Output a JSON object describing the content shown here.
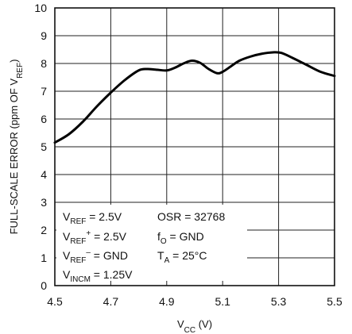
{
  "chart_data": {
    "type": "line",
    "xlabel": "V<sub>CC</sub> (V)",
    "xlabel_parts": {
      "main": "V",
      "sub": "CC",
      "suffix": " (V)"
    },
    "ylabel_parts": {
      "prefix": "FULL-SCALE ERROR (ppm OF V",
      "sub": "REF",
      "suffix": ")"
    },
    "xlim": [
      4.5,
      5.5
    ],
    "ylim": [
      0,
      10
    ],
    "x_ticks": [
      "4.5",
      "4.7",
      "4.9",
      "5.1",
      "5.3",
      "5.5"
    ],
    "y_ticks": [
      "0",
      "1",
      "2",
      "3",
      "4",
      "5",
      "6",
      "7",
      "8",
      "9",
      "10"
    ],
    "grid": true,
    "series": [
      {
        "x": [
          4.5,
          4.55,
          4.6,
          4.65,
          4.7,
          4.75,
          4.8,
          4.83,
          4.86,
          4.9,
          4.93,
          4.96,
          4.99,
          5.02,
          5.05,
          5.08,
          5.1,
          5.13,
          5.16,
          5.2,
          5.24,
          5.28,
          5.31,
          5.35,
          5.4,
          5.45,
          5.5
        ],
        "y": [
          5.15,
          5.45,
          5.9,
          6.45,
          6.95,
          7.4,
          7.75,
          7.8,
          7.78,
          7.75,
          7.85,
          8.0,
          8.1,
          8.02,
          7.8,
          7.65,
          7.7,
          7.9,
          8.1,
          8.25,
          8.35,
          8.4,
          8.38,
          8.2,
          7.95,
          7.7,
          7.55
        ]
      }
    ],
    "conditions": {
      "col1": [
        {
          "main": "V",
          "sub": "REF",
          "sup": "",
          "rest": " = 2.5V"
        },
        {
          "main": "V",
          "sub": "REF",
          "sup": "+",
          "rest": " = 2.5V"
        },
        {
          "main": "V",
          "sub": "REF",
          "sup": "–",
          "rest": " = GND"
        },
        {
          "main": "V",
          "sub": "INCM",
          "sup": "",
          "rest": " = 1.25V"
        }
      ],
      "col2": [
        {
          "main": "OSR = 32768",
          "sub": "",
          "rest": ""
        },
        {
          "main": "f",
          "sub": "O",
          "rest": " = GND"
        },
        {
          "main": "T",
          "sub": "A",
          "rest": " = 25°C"
        }
      ]
    }
  }
}
